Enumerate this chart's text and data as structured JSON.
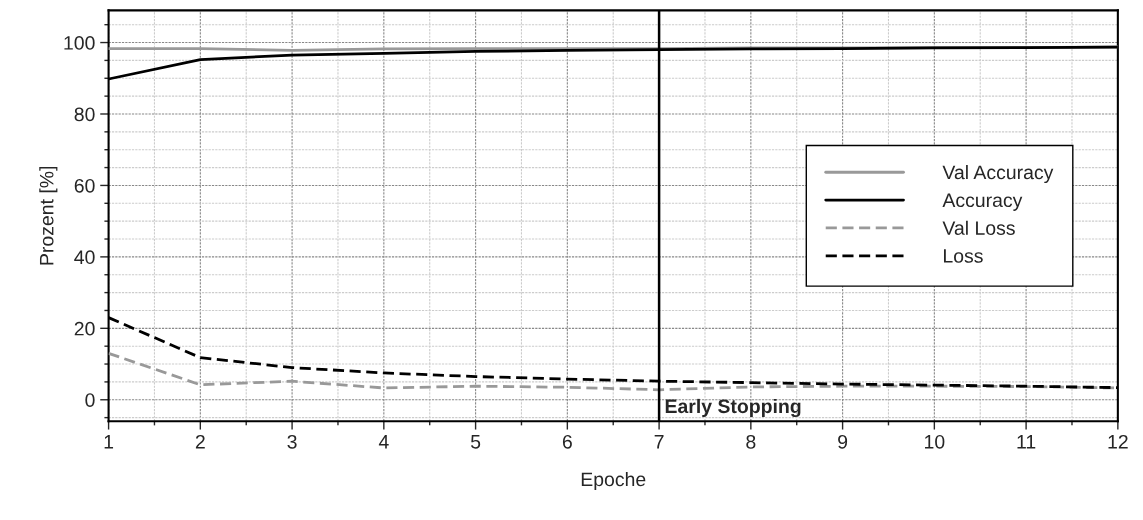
{
  "chart_data": {
    "type": "line",
    "xlabel": "Epoche",
    "ylabel": "Prozent [%]",
    "x": [
      1,
      2,
      3,
      4,
      5,
      6,
      7,
      8,
      9,
      10,
      11,
      12
    ],
    "series": [
      {
        "name": "Val Accuracy",
        "color": "#999999",
        "line_style": "solid",
        "values": [
          98.3,
          98.3,
          97.8,
          98.2,
          98.3,
          98.3,
          98.3,
          98.5,
          98.5,
          98.6,
          98.6,
          98.8
        ]
      },
      {
        "name": "Accuracy",
        "color": "#000000",
        "line_style": "solid",
        "values": [
          89.8,
          95.2,
          96.5,
          97.0,
          97.5,
          97.8,
          98.0,
          98.2,
          98.3,
          98.5,
          98.6,
          98.7
        ]
      },
      {
        "name": "Val Loss",
        "color": "#999999",
        "line_style": "dashed",
        "values": [
          13.0,
          4.2,
          5.2,
          3.3,
          3.8,
          3.5,
          2.8,
          3.6,
          3.8,
          3.8,
          3.7,
          3.3
        ]
      },
      {
        "name": "Loss",
        "color": "#000000",
        "line_style": "dashed",
        "values": [
          23.0,
          11.8,
          9.0,
          7.5,
          6.5,
          5.8,
          5.2,
          4.8,
          4.4,
          4.1,
          3.8,
          3.4
        ]
      }
    ],
    "xlim": [
      1,
      12
    ],
    "xticks": [
      1,
      2,
      3,
      4,
      5,
      6,
      7,
      8,
      9,
      10,
      11,
      12
    ],
    "ylim": [
      -6,
      109
    ],
    "yticks": [
      0,
      20,
      40,
      60,
      80,
      100
    ],
    "ref_lines": [
      {
        "axis": "x",
        "value": 7,
        "label": "Early Stopping",
        "color": "#000000",
        "line_style": "solid"
      }
    ],
    "grid": true,
    "legend": "right",
    "marker": "none"
  }
}
